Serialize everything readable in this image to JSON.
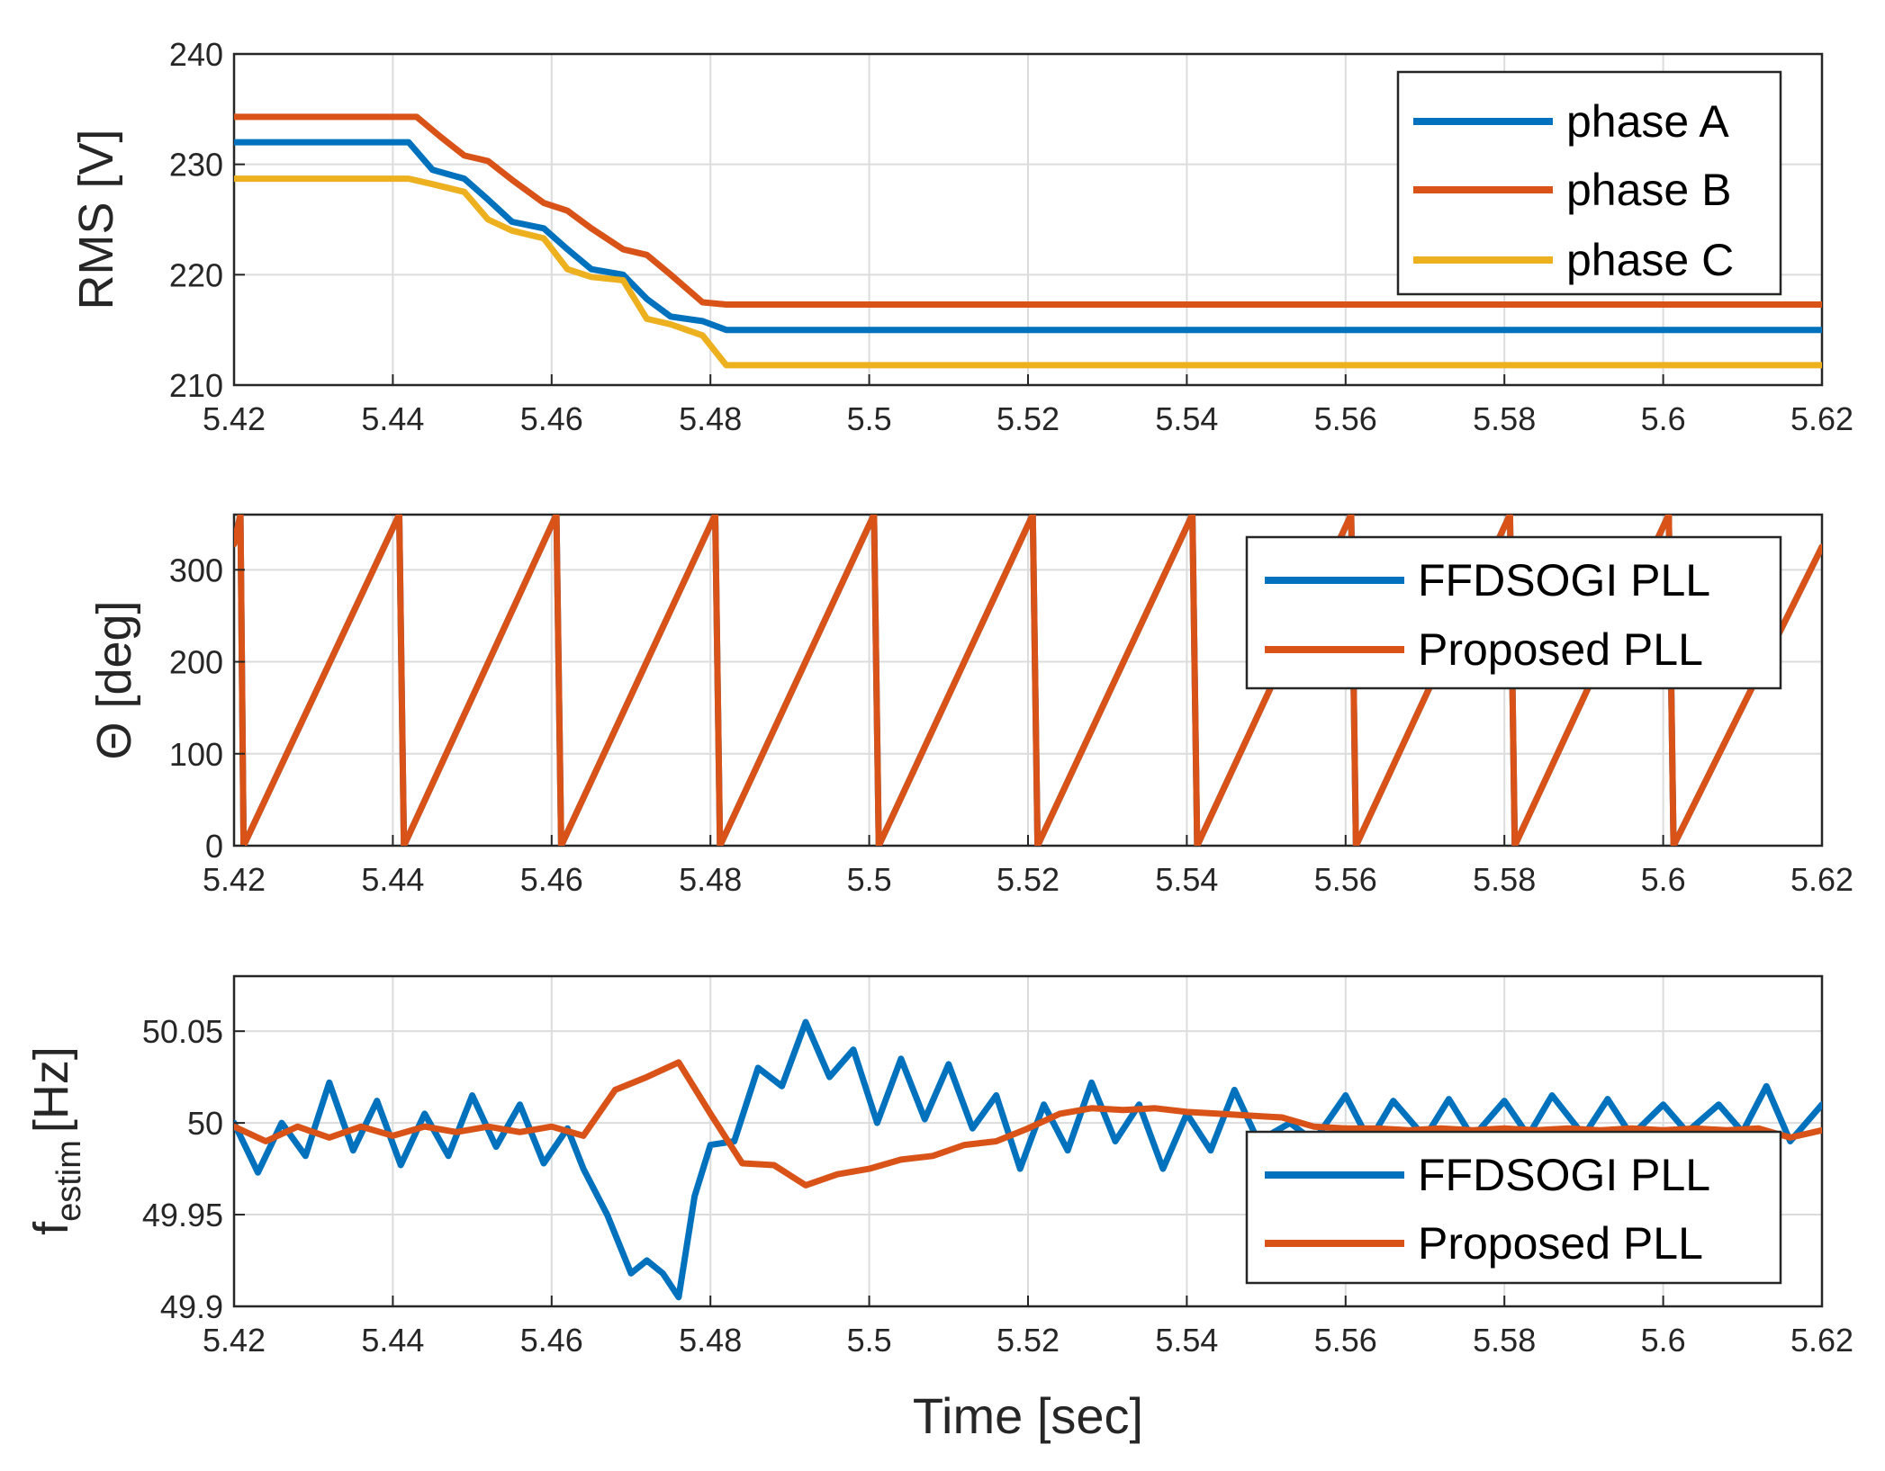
{
  "colors": {
    "blue": "#0072BD",
    "orange": "#D95319",
    "yellow": "#EDB120"
  },
  "chart_data": [
    {
      "type": "line",
      "ylabel": "RMS [V]",
      "xlim": [
        5.42,
        5.62
      ],
      "ylim": [
        210,
        240
      ],
      "xticks": [
        "5.42",
        "5.44",
        "5.46",
        "5.48",
        "5.5",
        "5.52",
        "5.54",
        "5.56",
        "5.58",
        "5.6",
        "5.62"
      ],
      "yticks": [
        "210",
        "220",
        "230",
        "240"
      ],
      "legend": "top-right",
      "series": [
        {
          "name": "phase A",
          "color": "#0072BD",
          "x": [
            5.42,
            5.442,
            5.445,
            5.449,
            5.452,
            5.455,
            5.459,
            5.462,
            5.465,
            5.469,
            5.472,
            5.475,
            5.479,
            5.482,
            5.62
          ],
          "y": [
            232.0,
            232.0,
            229.5,
            228.7,
            226.8,
            224.8,
            224.2,
            222.3,
            220.5,
            220.0,
            217.8,
            216.2,
            215.8,
            215.0,
            215.0
          ]
        },
        {
          "name": "phase B",
          "color": "#D95319",
          "x": [
            5.42,
            5.443,
            5.446,
            5.449,
            5.452,
            5.455,
            5.459,
            5.462,
            5.465,
            5.469,
            5.472,
            5.475,
            5.479,
            5.482,
            5.62
          ],
          "y": [
            234.3,
            234.3,
            232.5,
            230.8,
            230.3,
            228.6,
            226.5,
            225.8,
            224.2,
            222.3,
            221.8,
            220.0,
            217.5,
            217.3,
            217.3
          ]
        },
        {
          "name": "phase C",
          "color": "#EDB120",
          "x": [
            5.42,
            5.442,
            5.445,
            5.449,
            5.452,
            5.455,
            5.459,
            5.462,
            5.465,
            5.469,
            5.472,
            5.475,
            5.479,
            5.482,
            5.62
          ],
          "y": [
            228.7,
            228.7,
            228.2,
            227.5,
            225.0,
            224.0,
            223.3,
            220.5,
            219.8,
            219.5,
            216.0,
            215.5,
            214.5,
            211.8,
            211.8
          ]
        }
      ]
    },
    {
      "type": "line",
      "ylabel": "Θ [deg]",
      "xlim": [
        5.42,
        5.62
      ],
      "ylim": [
        0,
        360
      ],
      "xticks": [
        "5.42",
        "5.44",
        "5.46",
        "5.48",
        "5.5",
        "5.52",
        "5.54",
        "5.56",
        "5.58",
        "5.6",
        "5.62"
      ],
      "yticks": [
        "0",
        "100",
        "200",
        "300"
      ],
      "legend": "top-right",
      "wrap_times": [
        5.4212,
        5.4414,
        5.4612,
        5.4812,
        5.5012,
        5.5212,
        5.5413,
        5.5613,
        5.5813,
        5.6013
      ],
      "start_value": 328,
      "end_value": 325,
      "series": [
        {
          "name": "FFDSOGI PLL",
          "color": "#0072BD"
        },
        {
          "name": "Proposed PLL",
          "color": "#D95319"
        }
      ]
    },
    {
      "type": "line",
      "ylabel": "f",
      "ylabel_subscript": "estim",
      "ylabel_unit": "[Hz]",
      "xlabel": "Time [sec]",
      "xlim": [
        5.42,
        5.62
      ],
      "ylim": [
        49.9,
        50.08
      ],
      "xticks": [
        "5.42",
        "5.44",
        "5.46",
        "5.48",
        "5.5",
        "5.52",
        "5.54",
        "5.56",
        "5.58",
        "5.6",
        "5.62"
      ],
      "yticks": [
        "49.9",
        "49.95",
        "50",
        "50.05"
      ],
      "legend": "bottom-right",
      "series": [
        {
          "name": "FFDSOGI PLL",
          "color": "#0072BD",
          "x": [
            5.42,
            5.423,
            5.426,
            5.429,
            5.432,
            5.435,
            5.438,
            5.441,
            5.444,
            5.447,
            5.45,
            5.453,
            5.456,
            5.459,
            5.462,
            5.464,
            5.467,
            5.47,
            5.472,
            5.474,
            5.476,
            5.478,
            5.48,
            5.483,
            5.486,
            5.489,
            5.492,
            5.495,
            5.498,
            5.501,
            5.504,
            5.507,
            5.51,
            5.513,
            5.516,
            5.519,
            5.522,
            5.525,
            5.528,
            5.531,
            5.534,
            5.537,
            5.54,
            5.543,
            5.546,
            5.549,
            5.553,
            5.556,
            5.56,
            5.563,
            5.566,
            5.57,
            5.573,
            5.576,
            5.58,
            5.583,
            5.586,
            5.59,
            5.593,
            5.596,
            5.6,
            5.603,
            5.607,
            5.61,
            5.613,
            5.616,
            5.62
          ],
          "y": [
            50.0,
            49.973,
            50.0,
            49.982,
            50.022,
            49.985,
            50.012,
            49.977,
            50.005,
            49.982,
            50.015,
            49.987,
            50.01,
            49.978,
            49.997,
            49.975,
            49.95,
            49.918,
            49.925,
            49.918,
            49.905,
            49.96,
            49.988,
            49.99,
            50.03,
            50.02,
            50.055,
            50.025,
            50.04,
            50.0,
            50.035,
            50.002,
            50.032,
            49.997,
            50.015,
            49.975,
            50.01,
            49.985,
            50.022,
            49.99,
            50.01,
            49.975,
            50.005,
            49.985,
            50.018,
            49.99,
            50.0,
            49.99,
            50.015,
            49.99,
            50.012,
            49.992,
            50.013,
            49.992,
            50.012,
            49.993,
            50.015,
            49.993,
            50.013,
            49.993,
            50.01,
            49.995,
            50.01,
            49.995,
            50.02,
            49.99,
            50.01
          ]
        },
        {
          "name": "Proposed PLL",
          "color": "#D95319",
          "x": [
            5.42,
            5.424,
            5.428,
            5.432,
            5.436,
            5.44,
            5.444,
            5.448,
            5.452,
            5.456,
            5.46,
            5.464,
            5.468,
            5.472,
            5.476,
            5.48,
            5.484,
            5.488,
            5.492,
            5.496,
            5.5,
            5.504,
            5.508,
            5.512,
            5.516,
            5.52,
            5.524,
            5.528,
            5.532,
            5.536,
            5.54,
            5.544,
            5.548,
            5.552,
            5.556,
            5.56,
            5.564,
            5.568,
            5.572,
            5.576,
            5.58,
            5.584,
            5.588,
            5.592,
            5.596,
            5.6,
            5.604,
            5.608,
            5.612,
            5.616,
            5.62
          ],
          "y": [
            49.998,
            49.99,
            49.998,
            49.992,
            49.998,
            49.993,
            49.998,
            49.995,
            49.998,
            49.995,
            49.998,
            49.993,
            50.018,
            50.025,
            50.033,
            50.005,
            49.978,
            49.977,
            49.966,
            49.972,
            49.975,
            49.98,
            49.982,
            49.988,
            49.99,
            49.997,
            50.005,
            50.008,
            50.007,
            50.008,
            50.006,
            50.005,
            50.004,
            50.003,
            49.998,
            49.997,
            49.997,
            49.996,
            49.997,
            49.996,
            49.997,
            49.996,
            49.997,
            49.996,
            49.997,
            49.996,
            49.997,
            49.996,
            49.997,
            49.992,
            49.996
          ]
        }
      ]
    }
  ]
}
